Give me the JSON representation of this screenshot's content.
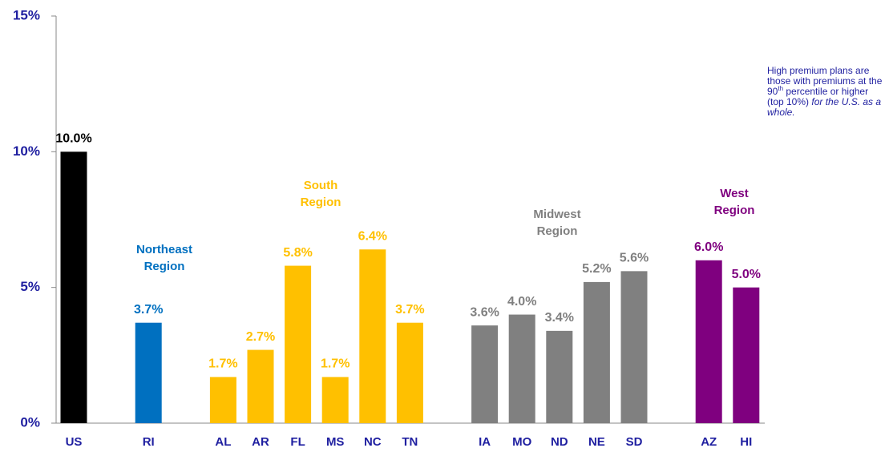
{
  "chart_data": {
    "type": "bar",
    "categories": [
      "US",
      null,
      "RI",
      null,
      "AL",
      "AR",
      "FL",
      "MS",
      "NC",
      "TN",
      null,
      "IA",
      "MO",
      "ND",
      "NE",
      "SD",
      null,
      "AZ",
      "HI"
    ],
    "values": [
      10.0,
      null,
      3.7,
      null,
      1.7,
      2.7,
      5.8,
      1.7,
      6.4,
      3.7,
      null,
      3.6,
      4.0,
      3.4,
      5.2,
      5.6,
      null,
      6.0,
      5.0
    ],
    "value_labels": [
      "10.0%",
      null,
      "3.7%",
      null,
      "1.7%",
      "2.7%",
      "5.8%",
      "1.7%",
      "6.4%",
      "3.7%",
      null,
      "3.6%",
      "4.0%",
      "3.4%",
      "5.2%",
      "5.6%",
      null,
      "6.0%",
      "5.0%"
    ],
    "colors": [
      "#000000",
      null,
      "#0070c0",
      null,
      "#ffc000",
      "#ffc000",
      "#ffc000",
      "#ffc000",
      "#ffc000",
      "#ffc000",
      null,
      "#808080",
      "#808080",
      "#808080",
      "#808080",
      "#808080",
      null,
      "#7f007f",
      "#7f007f"
    ],
    "ylim": [
      0,
      15
    ],
    "yticks": [
      {
        "value": 0,
        "label": "0%"
      },
      {
        "value": 5,
        "label": "5%"
      },
      {
        "value": 10,
        "label": "10%"
      },
      {
        "value": 15,
        "label": "15%"
      }
    ],
    "annotations": [
      {
        "lines": [
          "Northeast",
          "Region"
        ],
        "color": "#0070c0"
      },
      {
        "lines": [
          "South",
          "Region"
        ],
        "color": "#ffc000"
      },
      {
        "lines": [
          "Midwest",
          "Region"
        ],
        "color": "#808080"
      },
      {
        "lines": [
          "West",
          "Region"
        ],
        "color": "#7f007f"
      }
    ],
    "note": [
      "High premium plans are those with premiums at the 90",
      "th",
      " percentile or higher (top 10%) ",
      "for the U.S. as a whole."
    ]
  }
}
